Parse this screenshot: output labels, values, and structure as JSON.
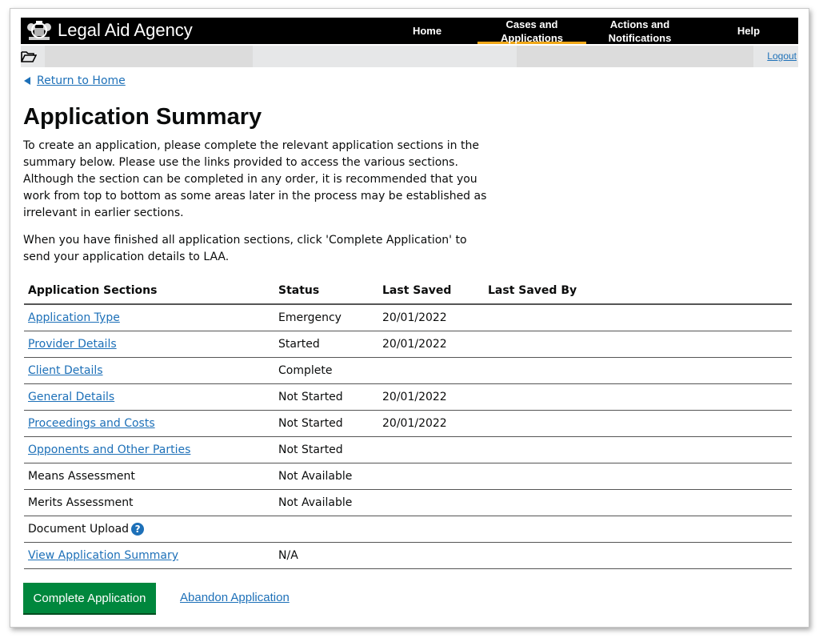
{
  "header": {
    "brand": "Legal Aid Agency",
    "nav": [
      {
        "label": "Home",
        "active": false
      },
      {
        "label": "Cases and Applications",
        "active": true
      },
      {
        "label": "Actions and Notifications",
        "active": false
      },
      {
        "label": "Help",
        "active": false
      }
    ],
    "logout": "Logout",
    "accent_color": "#f0a818"
  },
  "back_link": "Return to Home",
  "page": {
    "title": "Application Summary",
    "intro": "To create an application, please complete the relevant application sections in the summary below. Please use the links provided to access the various sections. Although the section can be completed in any order, it is recommended that you work from top to bottom as some areas later in the process may be established as irrelevant in earlier sections.",
    "instructions": "When you have finished all application sections, click 'Complete Application' to send your application details to LAA."
  },
  "table": {
    "headers": [
      "Application Sections",
      "Status",
      "Last Saved",
      "Last Saved By"
    ],
    "rows": [
      {
        "section": "Application Type",
        "link": true,
        "status": "Emergency",
        "last_saved": "20/01/2022",
        "by": ""
      },
      {
        "section": "Provider Details",
        "link": true,
        "status": "Started",
        "last_saved": "20/01/2022",
        "by": ""
      },
      {
        "section": "Client Details",
        "link": true,
        "status": "Complete",
        "last_saved": "",
        "by": ""
      },
      {
        "section": "General Details",
        "link": true,
        "status": "Not Started",
        "last_saved": "20/01/2022",
        "by": ""
      },
      {
        "section": "Proceedings and Costs",
        "link": true,
        "status": "Not Started",
        "last_saved": "20/01/2022",
        "by": ""
      },
      {
        "section": "Opponents and Other Parties",
        "link": true,
        "status": "Not Started",
        "last_saved": "",
        "by": ""
      },
      {
        "section": "Means Assessment",
        "link": false,
        "status": "Not Available",
        "last_saved": "",
        "by": ""
      },
      {
        "section": "Merits Assessment",
        "link": false,
        "status": "Not Available",
        "last_saved": "",
        "by": ""
      },
      {
        "section": "Document Upload",
        "link": false,
        "help": "?",
        "status": "",
        "last_saved": "",
        "by": ""
      },
      {
        "section": "View Application Summary",
        "link": true,
        "status": "N/A",
        "last_saved": "",
        "by": ""
      }
    ]
  },
  "actions": {
    "complete": "Complete Application",
    "abandon": "Abandon Application",
    "complete_color": "#00873d"
  }
}
